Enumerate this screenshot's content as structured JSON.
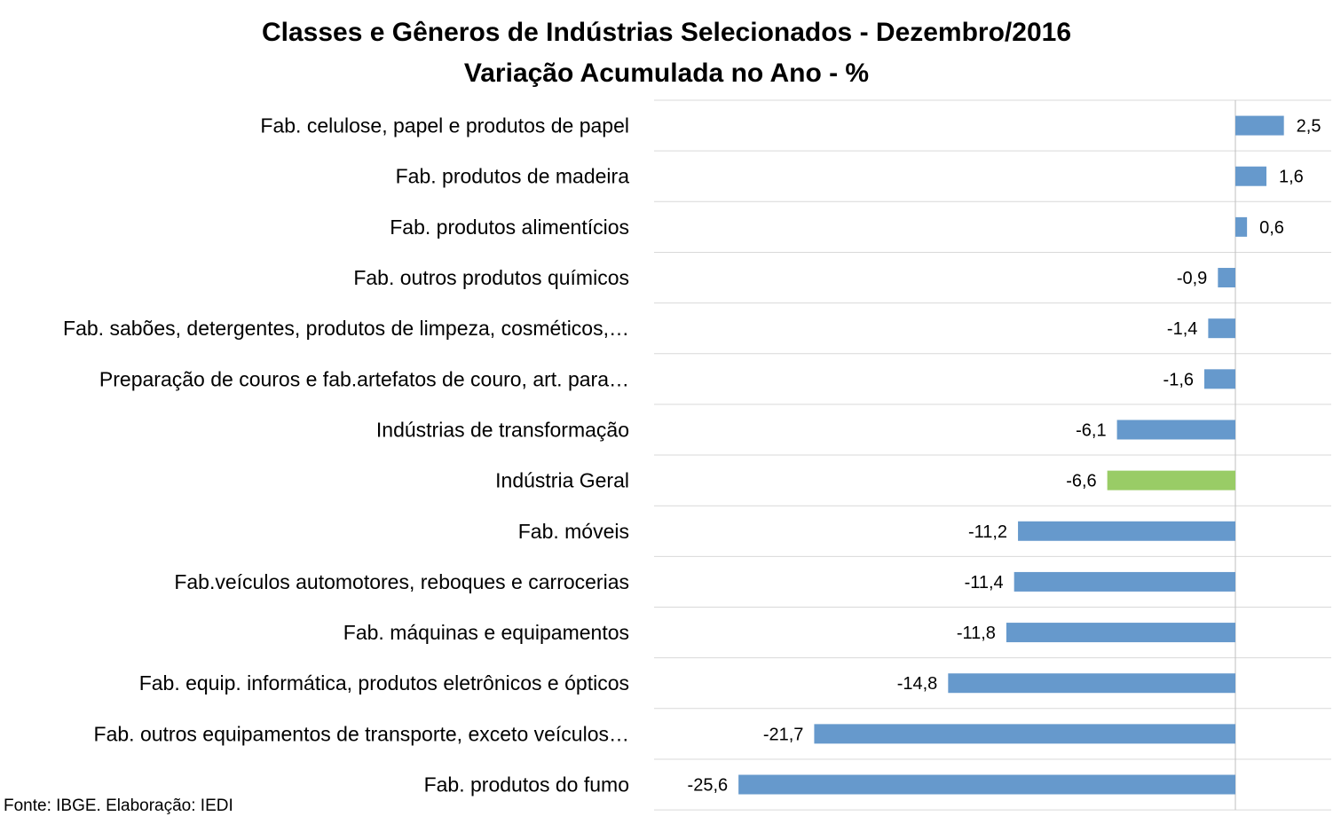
{
  "chart_data": {
    "type": "bar",
    "orientation": "horizontal",
    "title": "Classes e Gêneros de Indústrias Selecionados - Dezembro/2016",
    "subtitle": "Variação Acumulada no Ano - %",
    "source": "Fonte: IBGE. Elaboração: IEDI",
    "categories": [
      "Fab. celulose, papel e produtos de papel",
      "Fab. produtos de madeira",
      "Fab. produtos alimentícios",
      "Fab. outros produtos químicos",
      "Fab. sabões, detergentes, produtos de limpeza, cosméticos,…",
      "Preparação de couros e fab.artefatos de couro, art. para…",
      "Indústrias de transformação",
      "Indústria Geral",
      "Fab. móveis",
      "Fab.veículos automotores, reboques e carrocerias",
      "Fab. máquinas e equipamentos",
      "Fab. equip. informática, produtos eletrônicos e ópticos",
      "Fab. outros equipamentos de transporte, exceto veículos…",
      "Fab. produtos do fumo"
    ],
    "values": [
      2.5,
      1.6,
      0.6,
      -0.9,
      -1.4,
      -1.6,
      -6.1,
      -6.6,
      -11.2,
      -11.4,
      -11.8,
      -14.8,
      -21.7,
      -25.6
    ],
    "value_labels": [
      "2,5",
      "1,6",
      "0,6",
      "-0,9",
      "-1,4",
      "-1,6",
      "-6,1",
      "-6,6",
      "-11,2",
      "-11,4",
      "-11,8",
      "-14,8",
      "-21,7",
      "-25,6"
    ],
    "highlight_category": "Indústria Geral",
    "colors": {
      "bar": "#6699CC",
      "highlight": "#99CC66",
      "grid": "#D9D9D9",
      "axis": "#BFBFBF"
    },
    "xlim": [
      -25.6,
      5
    ],
    "grid": "horizontal",
    "legend": "none"
  }
}
